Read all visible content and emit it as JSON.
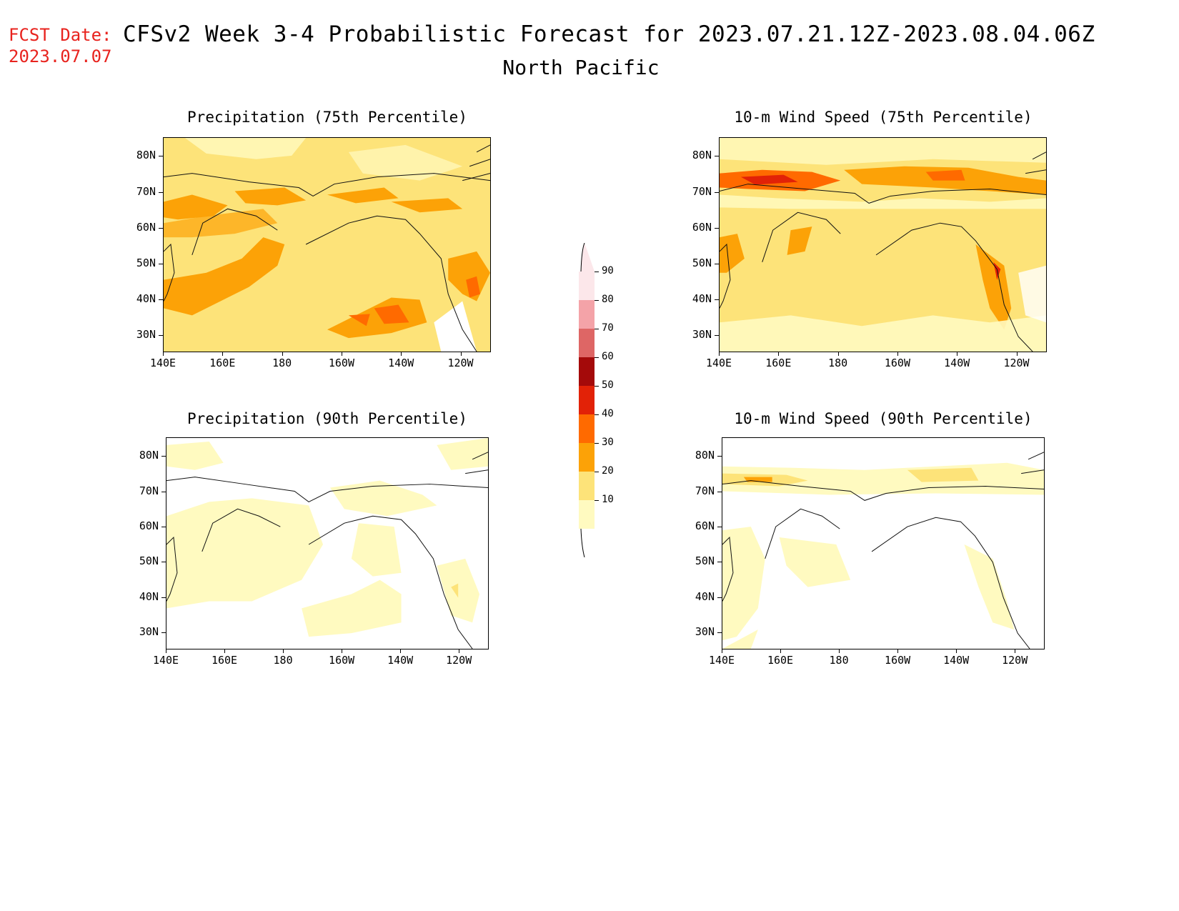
{
  "header": {
    "fcst_label": "FCST Date:",
    "fcst_date": "2023.07.07",
    "title": "CFSv2 Week 3-4 Probabilistic Forecast for 2023.07.21.12Z-2023.08.04.06Z",
    "region": "North Pacific"
  },
  "panels": [
    {
      "title": "Precipitation (75th Percentile)"
    },
    {
      "title": "10-m Wind Speed (75th Percentile)"
    },
    {
      "title": "Precipitation (90th Percentile)"
    },
    {
      "title": "10-m Wind Speed (90th Percentile)"
    }
  ],
  "axes": {
    "lat_labels": [
      "80N",
      "70N",
      "60N",
      "50N",
      "40N",
      "30N"
    ],
    "lon_labels": [
      "140E",
      "160E",
      "180",
      "160W",
      "140W",
      "120W"
    ]
  },
  "colorbar": {
    "levels": [
      "90",
      "80",
      "70",
      "60",
      "50",
      "40",
      "30",
      "20",
      "10"
    ],
    "colors": [
      "#fce7ea",
      "#f4a3a8",
      "#de6665",
      "#a40a0a",
      "#e22207",
      "#ff6a00",
      "#fca207",
      "#fde379",
      "#fffac0"
    ]
  },
  "palette": {
    "light_yellow": "#fffac0",
    "yellow": "#fde379",
    "orange": "#fca207",
    "dark_orange": "#ff6a00",
    "red": "#e22207"
  }
}
